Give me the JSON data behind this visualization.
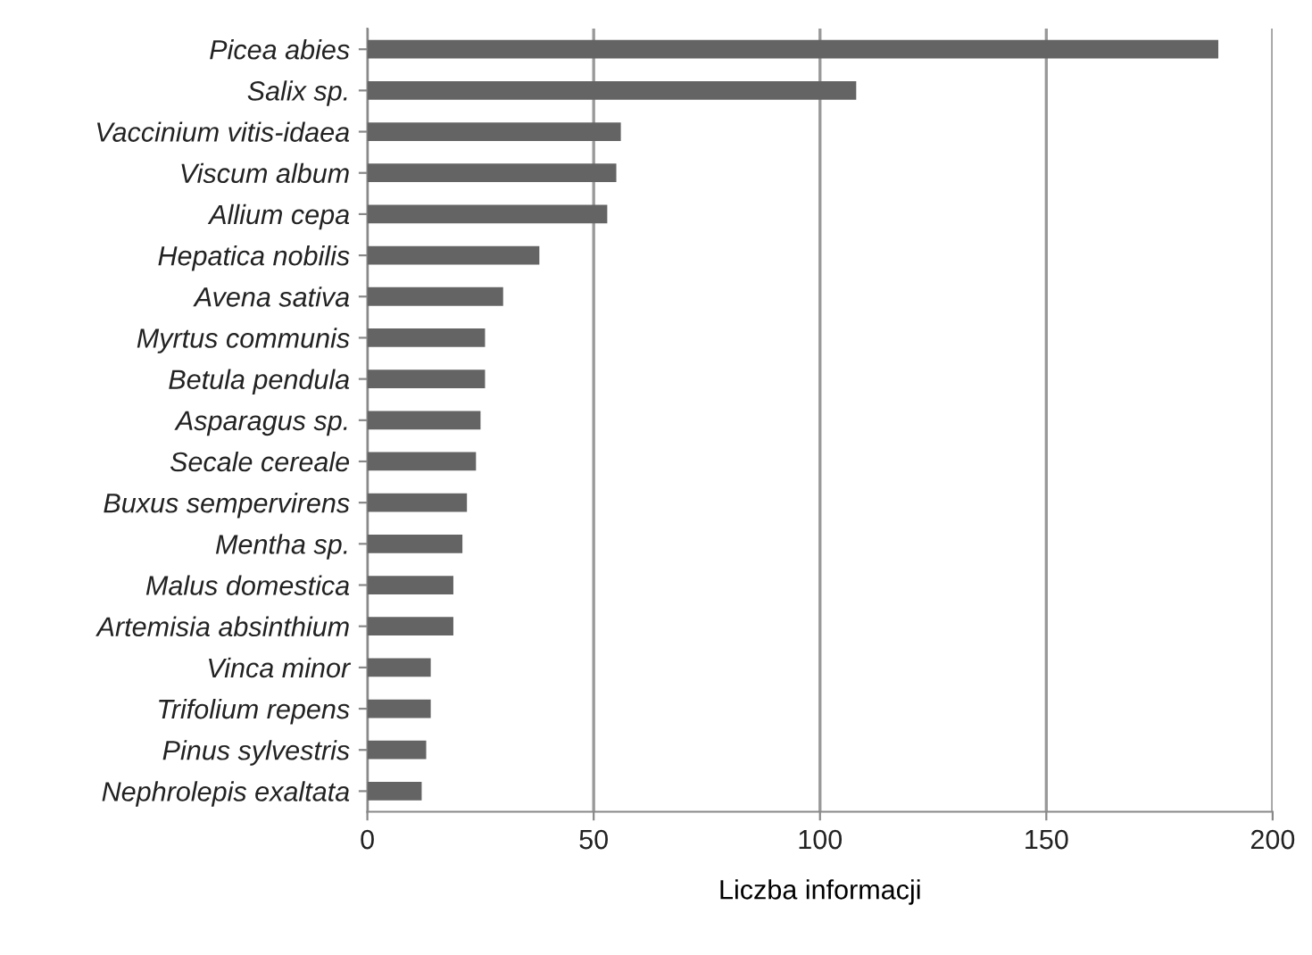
{
  "chart_data": {
    "type": "bar",
    "orientation": "horizontal",
    "xlabel": "Liczba informacji",
    "categories": [
      "Picea abies",
      "Salix sp.",
      "Vaccinium vitis-idaea",
      "Viscum album",
      "Allium cepa",
      "Hepatica nobilis",
      "Avena sativa",
      "Myrtus communis",
      "Betula pendula",
      "Asparagus sp.",
      "Secale cereale",
      "Buxus sempervirens",
      "Mentha sp.",
      "Malus domestica",
      "Artemisia absinthium",
      "Vinca minor",
      "Trifolium repens",
      "Pinus sylvestris",
      "Nephrolepis exaltata"
    ],
    "values": [
      188,
      108,
      56,
      55,
      53,
      38,
      30,
      26,
      26,
      25,
      24,
      22,
      21,
      19,
      19,
      14,
      14,
      13,
      12
    ],
    "color": "#646464",
    "xlim": [
      0,
      200
    ],
    "xticks": [
      0,
      50,
      100,
      150,
      200
    ],
    "grid": "x",
    "legend": false
  }
}
